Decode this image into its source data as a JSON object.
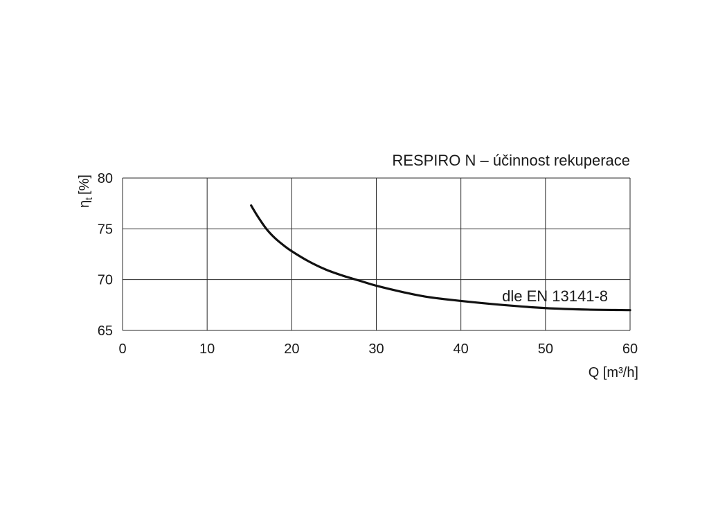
{
  "chart_data": {
    "type": "line",
    "title": "RESPIRO N – účinnost rekuperace",
    "xlabel": "Q [m³/h]",
    "ylabel": {
      "symbol": "η",
      "subscript": "t",
      "unit": "[%]"
    },
    "xlim": [
      0,
      60
    ],
    "ylim": [
      65,
      80
    ],
    "xticks": [
      "0",
      "10",
      "20",
      "30",
      "40",
      "50",
      "60"
    ],
    "yticks": [
      "80",
      "75",
      "70",
      "65"
    ],
    "grid": true,
    "annotation": "dle EN 13141-8",
    "series": [
      {
        "x": [
          15.2,
          16,
          17,
          18,
          19,
          20,
          22,
          24,
          26,
          28,
          30,
          33,
          36,
          40,
          45,
          50,
          55,
          60
        ],
        "y": [
          77.3,
          76.2,
          75.0,
          74.1,
          73.4,
          72.8,
          71.8,
          71.0,
          70.4,
          69.9,
          69.4,
          68.8,
          68.3,
          67.9,
          67.5,
          67.2,
          67.05,
          67.0
        ]
      }
    ]
  }
}
